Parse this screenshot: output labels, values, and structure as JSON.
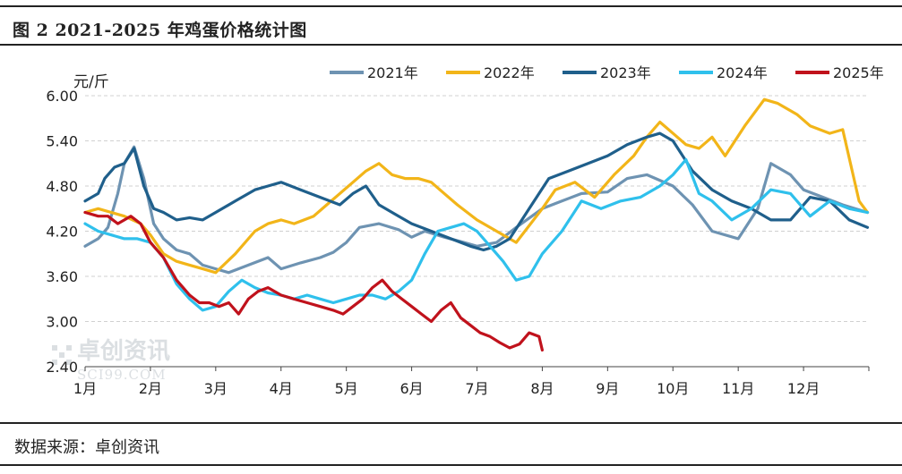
{
  "header": {
    "title": "图 2 2021-2025 年鸡蛋价格统计图"
  },
  "footer": {
    "source": "数据来源：卓创资讯"
  },
  "watermark": {
    "brand_cn": "卓创资讯",
    "brand_en": "SCI99.COM"
  },
  "chart_data": {
    "type": "line",
    "ylabel": "元/斤",
    "ylim": [
      2.4,
      6.0
    ],
    "yticks": [
      "2.40",
      "3.00",
      "3.60",
      "4.20",
      "4.80",
      "5.40",
      "6.00"
    ],
    "grid": "horizontal dashed",
    "legend_position": "top",
    "x_months": [
      "1月",
      "2月",
      "3月",
      "4月",
      "5月",
      "6月",
      "7月",
      "8月",
      "9月",
      "10月",
      "11月",
      "12月"
    ],
    "series": [
      {
        "name": "2021年",
        "color": "#6e93b2",
        "x": [
          0,
          0.2,
          0.35,
          0.5,
          0.6,
          0.75,
          0.9,
          1.05,
          1.2,
          1.4,
          1.6,
          1.8,
          2.0,
          2.2,
          2.5,
          2.8,
          3.0,
          3.3,
          3.6,
          3.8,
          4.0,
          4.2,
          4.5,
          4.8,
          5.0,
          5.2,
          5.5,
          5.8,
          6.0,
          6.3,
          6.6,
          7.0,
          7.3,
          7.6,
          8.0,
          8.3,
          8.6,
          9.0,
          9.3,
          9.6,
          10.0,
          10.3,
          10.5,
          10.8,
          11.0,
          11.3,
          11.6,
          11.98
        ],
        "y": [
          4.0,
          4.1,
          4.25,
          4.7,
          5.1,
          5.32,
          4.9,
          4.3,
          4.1,
          3.95,
          3.9,
          3.75,
          3.7,
          3.65,
          3.75,
          3.85,
          3.7,
          3.78,
          3.85,
          3.92,
          4.05,
          4.25,
          4.3,
          4.22,
          4.12,
          4.2,
          4.12,
          4.05,
          4.0,
          4.05,
          4.25,
          4.5,
          4.6,
          4.7,
          4.72,
          4.9,
          4.95,
          4.8,
          4.55,
          4.2,
          4.1,
          4.5,
          5.1,
          4.95,
          4.75,
          4.65,
          4.55,
          4.45
        ]
      },
      {
        "name": "2022年",
        "color": "#f2b519",
        "x": [
          0,
          0.2,
          0.4,
          0.6,
          0.85,
          1.0,
          1.2,
          1.4,
          1.6,
          1.8,
          2.0,
          2.3,
          2.6,
          2.8,
          3.0,
          3.2,
          3.5,
          3.7,
          3.9,
          4.1,
          4.3,
          4.5,
          4.7,
          4.9,
          5.1,
          5.3,
          5.5,
          5.7,
          6.0,
          6.3,
          6.6,
          7.0,
          7.2,
          7.5,
          7.8,
          8.1,
          8.4,
          8.6,
          8.8,
          9.0,
          9.2,
          9.4,
          9.6,
          9.8,
          10.1,
          10.4,
          10.6,
          10.9,
          11.1,
          11.4,
          11.6,
          11.85,
          11.98
        ],
        "y": [
          4.45,
          4.5,
          4.45,
          4.4,
          4.3,
          4.15,
          3.9,
          3.8,
          3.75,
          3.7,
          3.65,
          3.9,
          4.2,
          4.3,
          4.35,
          4.3,
          4.4,
          4.55,
          4.7,
          4.85,
          5.0,
          5.1,
          4.95,
          4.9,
          4.9,
          4.85,
          4.7,
          4.55,
          4.35,
          4.2,
          4.05,
          4.5,
          4.75,
          4.85,
          4.65,
          4.95,
          5.2,
          5.45,
          5.65,
          5.5,
          5.35,
          5.3,
          5.45,
          5.2,
          5.6,
          5.95,
          5.9,
          5.75,
          5.6,
          5.5,
          5.55,
          4.6,
          4.45
        ]
      },
      {
        "name": "2023年",
        "color": "#1f5f8b",
        "x": [
          0,
          0.2,
          0.3,
          0.45,
          0.6,
          0.75,
          0.9,
          1.05,
          1.2,
          1.4,
          1.6,
          1.8,
          2.0,
          2.3,
          2.6,
          2.8,
          3.0,
          3.3,
          3.6,
          3.9,
          4.1,
          4.3,
          4.5,
          4.8,
          5.0,
          5.3,
          5.6,
          5.9,
          6.1,
          6.3,
          6.5,
          6.8,
          7.1,
          7.4,
          7.7,
          8.0,
          8.3,
          8.6,
          8.8,
          9.0,
          9.3,
          9.6,
          9.9,
          10.2,
          10.5,
          10.8,
          11.1,
          11.4,
          11.7,
          11.98
        ],
        "y": [
          4.6,
          4.7,
          4.9,
          5.05,
          5.1,
          5.3,
          4.8,
          4.5,
          4.45,
          4.35,
          4.38,
          4.35,
          4.45,
          4.6,
          4.75,
          4.8,
          4.85,
          4.75,
          4.65,
          4.55,
          4.7,
          4.8,
          4.55,
          4.4,
          4.3,
          4.2,
          4.1,
          4.0,
          3.95,
          4.0,
          4.1,
          4.5,
          4.9,
          5.0,
          5.1,
          5.2,
          5.35,
          5.45,
          5.5,
          5.4,
          5.0,
          4.75,
          4.6,
          4.5,
          4.35,
          4.35,
          4.65,
          4.6,
          4.35,
          4.25
        ]
      },
      {
        "name": "2024年",
        "color": "#2fc0ec",
        "x": [
          0,
          0.2,
          0.4,
          0.6,
          0.8,
          1.0,
          1.2,
          1.4,
          1.6,
          1.8,
          2.0,
          2.2,
          2.4,
          2.6,
          2.8,
          3.0,
          3.2,
          3.4,
          3.6,
          3.8,
          4.0,
          4.2,
          4.4,
          4.6,
          4.8,
          5.0,
          5.2,
          5.4,
          5.6,
          5.8,
          6.0,
          6.2,
          6.4,
          6.6,
          6.8,
          7.0,
          7.3,
          7.6,
          7.9,
          8.2,
          8.5,
          8.8,
          9.0,
          9.2,
          9.4,
          9.6,
          9.9,
          10.2,
          10.5,
          10.8,
          11.1,
          11.4,
          11.7,
          11.98
        ],
        "y": [
          4.3,
          4.2,
          4.15,
          4.1,
          4.1,
          4.05,
          3.85,
          3.5,
          3.3,
          3.15,
          3.2,
          3.4,
          3.55,
          3.45,
          3.38,
          3.35,
          3.3,
          3.35,
          3.3,
          3.25,
          3.3,
          3.35,
          3.35,
          3.3,
          3.4,
          3.55,
          3.9,
          4.2,
          4.25,
          4.3,
          4.2,
          4.0,
          3.8,
          3.55,
          3.6,
          3.9,
          4.2,
          4.6,
          4.5,
          4.6,
          4.65,
          4.8,
          4.95,
          5.15,
          4.7,
          4.6,
          4.35,
          4.5,
          4.75,
          4.7,
          4.4,
          4.6,
          4.5,
          4.45
        ]
      },
      {
        "name": "2025年",
        "color": "#c0121c",
        "x": [
          0,
          0.2,
          0.35,
          0.5,
          0.7,
          0.85,
          1.0,
          1.1,
          1.2,
          1.3,
          1.4,
          1.5,
          1.6,
          1.75,
          1.9,
          2.05,
          2.2,
          2.35,
          2.5,
          2.65,
          2.8,
          3.0,
          3.2,
          3.4,
          3.6,
          3.8,
          3.95,
          4.1,
          4.25,
          4.4,
          4.55,
          4.7,
          4.85,
          5.0,
          5.15,
          5.3,
          5.45,
          5.6,
          5.75,
          5.9,
          6.05,
          6.2,
          6.35,
          6.5,
          6.65,
          6.8,
          6.95,
          7.0
        ],
        "y": [
          4.45,
          4.4,
          4.4,
          4.3,
          4.4,
          4.3,
          4.05,
          3.95,
          3.85,
          3.7,
          3.55,
          3.45,
          3.35,
          3.25,
          3.25,
          3.2,
          3.25,
          3.1,
          3.3,
          3.4,
          3.45,
          3.35,
          3.3,
          3.25,
          3.2,
          3.15,
          3.1,
          3.2,
          3.3,
          3.45,
          3.55,
          3.4,
          3.3,
          3.2,
          3.1,
          3.0,
          3.15,
          3.25,
          3.05,
          2.95,
          2.85,
          2.8,
          2.72,
          2.65,
          2.7,
          2.85,
          2.8,
          2.62
        ]
      }
    ]
  }
}
